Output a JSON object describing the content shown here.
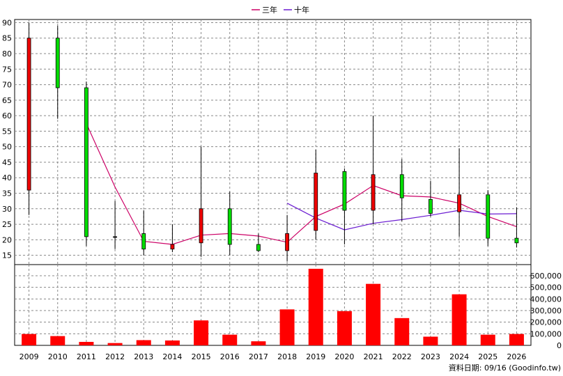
{
  "legend": {
    "items": [
      {
        "label": "三年",
        "color": "#cc0066"
      },
      {
        "label": "十年",
        "color": "#6a1bd1"
      }
    ]
  },
  "footer": {
    "source": "資料日期: 09/16 (Goodinfo.tw)"
  },
  "chart_data": [
    {
      "type": "candlestick",
      "x": [
        "2009",
        "2010",
        "2011",
        "2012",
        "2013",
        "2014",
        "2015",
        "2016",
        "2017",
        "2018",
        "2019",
        "2020",
        "2021",
        "2022",
        "2023",
        "2024",
        "2025",
        "2026"
      ],
      "ylim": [
        12,
        91
      ],
      "yticks": [
        15,
        20,
        25,
        30,
        35,
        40,
        45,
        50,
        55,
        60,
        65,
        70,
        75,
        80,
        85,
        90
      ],
      "grid": true,
      "legend_position": "top-center",
      "candles": [
        {
          "open": 85,
          "close": 36,
          "high": 90,
          "low": 28
        },
        {
          "open": 69,
          "close": 85,
          "high": 89,
          "low": 59
        },
        {
          "open": 21,
          "close": 69,
          "high": 71,
          "low": 18
        },
        {
          "open": 21,
          "close": 21,
          "high": 32.5,
          "low": 17
        },
        {
          "open": 17,
          "close": 22,
          "high": 29.5,
          "low": 15
        },
        {
          "open": 18.5,
          "close": 17,
          "high": 25,
          "low": 16
        },
        {
          "open": 30,
          "close": 19,
          "high": 50,
          "low": 14.5
        },
        {
          "open": 18.5,
          "close": 30,
          "high": 35.5,
          "low": 15
        },
        {
          "open": 16.5,
          "close": 18.5,
          "high": 22,
          "low": 16
        },
        {
          "open": 22,
          "close": 16.5,
          "high": 28,
          "low": 13
        },
        {
          "open": 41.5,
          "close": 23,
          "high": 49,
          "low": 20
        },
        {
          "open": 29.5,
          "close": 42,
          "high": 43,
          "low": 18.5
        },
        {
          "open": 41,
          "close": 29.5,
          "high": 60,
          "low": 25
        },
        {
          "open": 33.5,
          "close": 41,
          "high": 46,
          "low": 26
        },
        {
          "open": 28.5,
          "close": 33,
          "high": 39,
          "low": 27.5
        },
        {
          "open": 34.5,
          "close": 29,
          "high": 49.5,
          "low": 21
        },
        {
          "open": 20.5,
          "close": 34.5,
          "high": 36,
          "low": 18
        },
        {
          "open": 19,
          "close": 20.5,
          "high": 30.5,
          "low": 17.5
        }
      ],
      "series": [
        {
          "name": "三年",
          "values": [
            null,
            null,
            57.5,
            37,
            19.5,
            18.5,
            21.5,
            22,
            21.2,
            19.2,
            27.5,
            31.5,
            37.5,
            34.2,
            33.8,
            31.8,
            27.5,
            24.2
          ]
        },
        {
          "name": "十年",
          "values": [
            null,
            null,
            null,
            null,
            null,
            null,
            null,
            null,
            null,
            31.8,
            27,
            23.2,
            25.3,
            26.5,
            27.9,
            29.5,
            28.3,
            28.4
          ]
        }
      ]
    },
    {
      "type": "bar",
      "x": [
        "2009",
        "2010",
        "2011",
        "2012",
        "2013",
        "2014",
        "2015",
        "2016",
        "2017",
        "2018",
        "2019",
        "2020",
        "2021",
        "2022",
        "2023",
        "2024",
        "2025",
        "2026"
      ],
      "values": [
        98000,
        80000,
        30000,
        20000,
        45000,
        42000,
        215000,
        92000,
        35000,
        310000,
        660000,
        295000,
        530000,
        235000,
        75000,
        440000,
        92000,
        98000
      ],
      "ylim": [
        0,
        660000
      ],
      "yticks": [
        0,
        100000,
        200000,
        300000,
        400000,
        500000,
        600000
      ],
      "ytick_labels": [
        "0",
        "100,000",
        "200,000",
        "300,000",
        "400,000",
        "500,000",
        "600,000"
      ],
      "color": "#ff0000"
    }
  ]
}
